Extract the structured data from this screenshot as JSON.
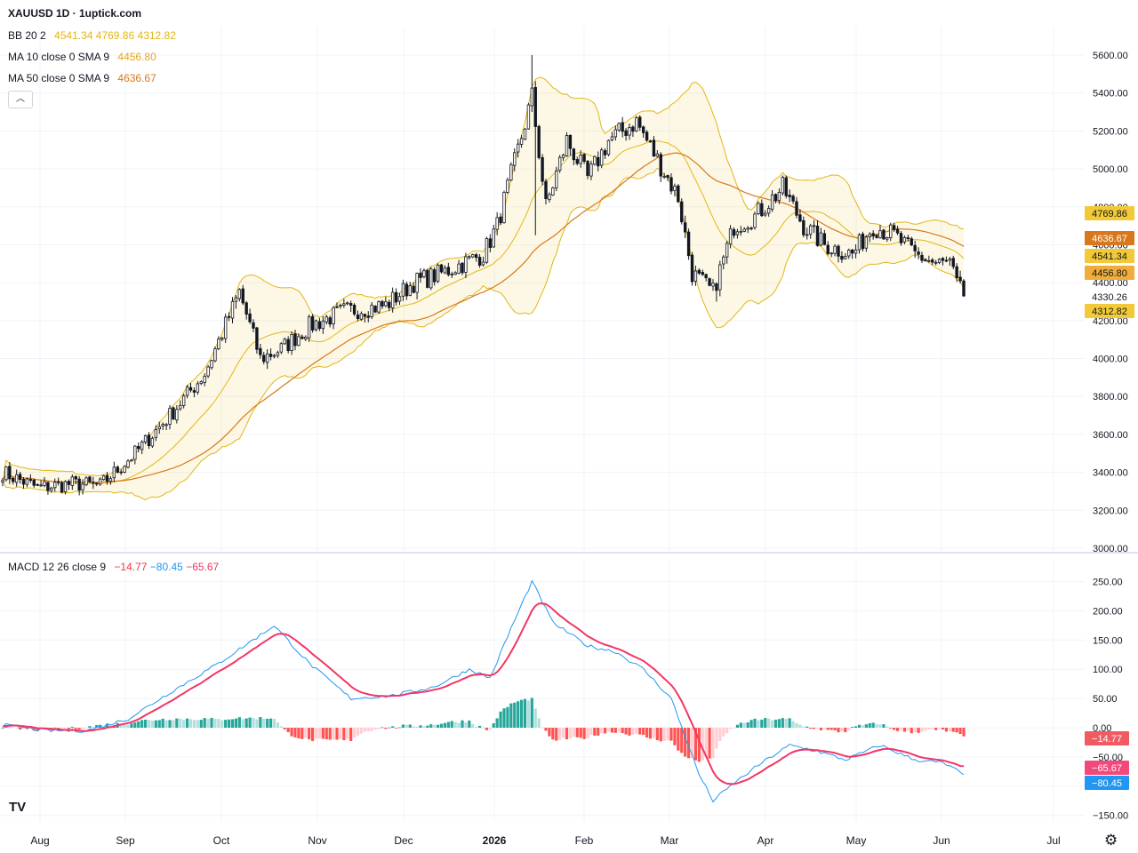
{
  "header": {
    "title": "XAUUSD 1D · 1uptick.com"
  },
  "legend": {
    "bb": {
      "label": "BB 20 2",
      "values": [
        "4541.34",
        "4769.86",
        "4312.82"
      ],
      "color": "#e2b616"
    },
    "ma10": {
      "label": "MA 10 close 0 SMA 9",
      "value": "4456.80",
      "color": "#e6a51e"
    },
    "ma50": {
      "label": "MA 50 close 0 SMA 9",
      "value": "4636.67",
      "color": "#d9781a"
    },
    "macd": {
      "label": "MACD 12 26 close 9",
      "values": [
        "−14.77",
        "−80.45",
        "−65.67"
      ],
      "colors": [
        "#f23645",
        "#2196f3",
        "#f23666"
      ]
    }
  },
  "collapse_icon": "chevron-up-icon",
  "price_tags": [
    {
      "text": "4769.86",
      "bg": "#f2c936",
      "fg": "#131722"
    },
    {
      "text": "4636.67",
      "bg": "#d9781a",
      "fg": "#ffffff"
    },
    {
      "text": "4541.34",
      "bg": "#f2c936",
      "fg": "#131722"
    },
    {
      "text": "4456.80",
      "bg": "#f0ad3a",
      "fg": "#131722"
    },
    {
      "text": "4330.26",
      "bg": "#ffffff",
      "fg": "#131722"
    },
    {
      "text": "4312.82",
      "bg": "#f2c936",
      "fg": "#131722"
    }
  ],
  "macd_tags": [
    {
      "text": "−14.77",
      "bg": "#f25a61",
      "fg": "#ffffff"
    },
    {
      "text": "−65.67",
      "bg": "#f0497a",
      "fg": "#ffffff"
    },
    {
      "text": "−80.45",
      "bg": "#2196f3",
      "fg": "#ffffff"
    }
  ],
  "logo": "TV",
  "settings_icon": "gear-icon",
  "chart_data": {
    "type": "candlestick",
    "symbol": "XAUUSD",
    "timeframe": "1D",
    "x_tick_labels": [
      "Aug",
      "Sep",
      "Oct",
      "Nov",
      "Dec",
      "2026",
      "Feb",
      "Mar",
      "Apr",
      "May",
      "Jun",
      "Jul"
    ],
    "price_axis": {
      "ticks": [
        "3000.00",
        "3200.00",
        "3400.00",
        "3600.00",
        "3800.00",
        "4000.00",
        "4200.00",
        "4400.00",
        "4600.00",
        "4800.00",
        "5000.00",
        "5200.00",
        "5400.00",
        "5600.00"
      ],
      "ylim": [
        3000,
        5650
      ]
    },
    "macd_axis": {
      "ticks": [
        "−150.00",
        "−100.00",
        "−50.00",
        "0.00",
        "50.00",
        "100.00",
        "150.00",
        "200.00",
        "250.00"
      ],
      "ylim": [
        -150,
        260
      ]
    },
    "last_close": 4330.26,
    "indicators": {
      "bollinger": {
        "period": 20,
        "mult": 2,
        "basis": 4541.34,
        "upper": 4769.86,
        "lower": 4312.82
      },
      "ma10": 4456.8,
      "ma50": 4636.67,
      "macd": {
        "fast": 12,
        "slow": 26,
        "signal": 9,
        "histogram": -14.77,
        "macd": -80.45,
        "signal_value": -65.67
      }
    },
    "series_keypoints_close": [
      [
        0,
        3400
      ],
      [
        10,
        3320
      ],
      [
        20,
        3340
      ],
      [
        28,
        3330
      ],
      [
        38,
        3500
      ],
      [
        48,
        3700
      ],
      [
        58,
        3920
      ],
      [
        68,
        4350
      ],
      [
        74,
        4000
      ],
      [
        80,
        4050
      ],
      [
        88,
        4170
      ],
      [
        98,
        4250
      ],
      [
        110,
        4280
      ],
      [
        118,
        4400
      ],
      [
        126,
        4450
      ],
      [
        138,
        4550
      ],
      [
        142,
        4700
      ],
      [
        148,
        5100
      ],
      [
        152,
        5380
      ],
      [
        156,
        4800
      ],
      [
        162,
        5150
      ],
      [
        168,
        4950
      ],
      [
        174,
        5150
      ],
      [
        182,
        5250
      ],
      [
        188,
        5050
      ],
      [
        194,
        4850
      ],
      [
        198,
        4450
      ],
      [
        204,
        4350
      ],
      [
        210,
        4700
      ],
      [
        216,
        4750
      ],
      [
        224,
        4900
      ],
      [
        230,
        4700
      ],
      [
        236,
        4600
      ],
      [
        244,
        4550
      ],
      [
        250,
        4700
      ],
      [
        256,
        4650
      ],
      [
        262,
        4550
      ],
      [
        268,
        4500
      ],
      [
        272,
        4500
      ],
      [
        274,
        4390
      ],
      [
        276,
        4330
      ]
    ],
    "macd_keypoints": [
      [
        0,
        5
      ],
      [
        12,
        -5
      ],
      [
        24,
        -5
      ],
      [
        36,
        15
      ],
      [
        48,
        60
      ],
      [
        62,
        110
      ],
      [
        78,
        175
      ],
      [
        88,
        110
      ],
      [
        100,
        50
      ],
      [
        112,
        55
      ],
      [
        124,
        70
      ],
      [
        134,
        100
      ],
      [
        140,
        85
      ],
      [
        146,
        170
      ],
      [
        152,
        250
      ],
      [
        158,
        180
      ],
      [
        168,
        140
      ],
      [
        176,
        130
      ],
      [
        184,
        100
      ],
      [
        192,
        50
      ],
      [
        200,
        -80
      ],
      [
        204,
        -125
      ],
      [
        210,
        -95
      ],
      [
        218,
        -60
      ],
      [
        226,
        -30
      ],
      [
        234,
        -40
      ],
      [
        242,
        -55
      ],
      [
        252,
        -30
      ],
      [
        262,
        -55
      ],
      [
        270,
        -60
      ],
      [
        276,
        -80
      ]
    ]
  }
}
